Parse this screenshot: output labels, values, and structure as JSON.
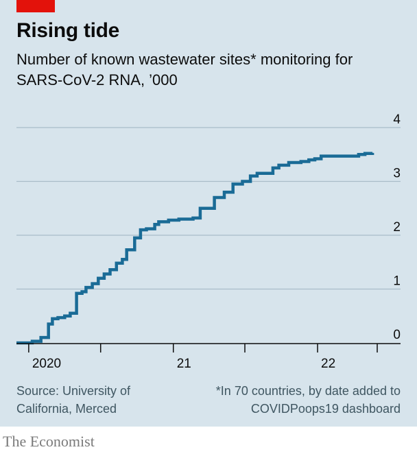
{
  "header": {
    "title": "Rising tide",
    "subtitle": "Number of known wastewater sites* monitoring for SARS-CoV-2 RNA, ’000"
  },
  "footer": {
    "source": "Source: University of California, Merced",
    "footnote": "*In 70 countries, by date added to COVIDPoops19 dashboard",
    "brand": "The Economist"
  },
  "colors": {
    "line": "#1a6b96",
    "accent": "#e3120b",
    "background": "#d7e4ec"
  },
  "chart_data": {
    "type": "line",
    "step": true,
    "title": "Rising tide",
    "subtitle": "Number of known wastewater sites* monitoring for SARS-CoV-2 RNA, ’000",
    "xlabel": "",
    "ylabel": "",
    "xlim": [
      "2020-01-01",
      "2022-06-01"
    ],
    "ylim": [
      0,
      4
    ],
    "yticks": [
      0,
      1,
      2,
      3,
      4
    ],
    "y_tick_labels": [
      "0",
      "1",
      "2",
      "3",
      "4"
    ],
    "xticks": [
      {
        "date": "2020-01-01",
        "label": "2020"
      },
      {
        "date": "2020-07-01",
        "label": ""
      },
      {
        "date": "2021-01-01",
        "label": "21"
      },
      {
        "date": "2021-07-01",
        "label": ""
      },
      {
        "date": "2022-01-01",
        "label": "22"
      },
      {
        "date": "2022-06-01",
        "label": ""
      }
    ],
    "grid": true,
    "series": [
      {
        "x": [
          "2019-12-01",
          "2020-01-10",
          "2020-02-01",
          "2020-02-20",
          "2020-03-01",
          "2020-03-15",
          "2020-04-01",
          "2020-04-15",
          "2020-05-01",
          "2020-05-15",
          "2020-05-25",
          "2020-06-10",
          "2020-06-25",
          "2020-07-10",
          "2020-07-25",
          "2020-08-10",
          "2020-08-25",
          "2020-09-05",
          "2020-09-25",
          "2020-10-10",
          "2020-10-25",
          "2020-11-15",
          "2020-11-25",
          "2020-12-20",
          "2021-01-15",
          "2021-02-20",
          "2021-03-10",
          "2021-04-15",
          "2021-05-10",
          "2021-06-01",
          "2021-06-25",
          "2021-07-15",
          "2021-08-01",
          "2021-08-20",
          "2021-09-10",
          "2021-09-25",
          "2021-10-20",
          "2021-11-20",
          "2021-12-10",
          "2021-12-25",
          "2022-01-10",
          "2022-03-15",
          "2022-04-15",
          "2022-05-01",
          "2022-05-20"
        ],
        "values": [
          0.0,
          0.03,
          0.1,
          0.35,
          0.45,
          0.47,
          0.5,
          0.55,
          0.92,
          0.95,
          1.03,
          1.1,
          1.2,
          1.28,
          1.36,
          1.48,
          1.55,
          1.73,
          1.95,
          2.1,
          2.12,
          2.2,
          2.25,
          2.28,
          2.3,
          2.32,
          2.5,
          2.7,
          2.8,
          2.95,
          3.0,
          3.1,
          3.15,
          3.15,
          3.25,
          3.3,
          3.35,
          3.37,
          3.4,
          3.42,
          3.47,
          3.47,
          3.5,
          3.52,
          3.53
        ]
      }
    ]
  }
}
